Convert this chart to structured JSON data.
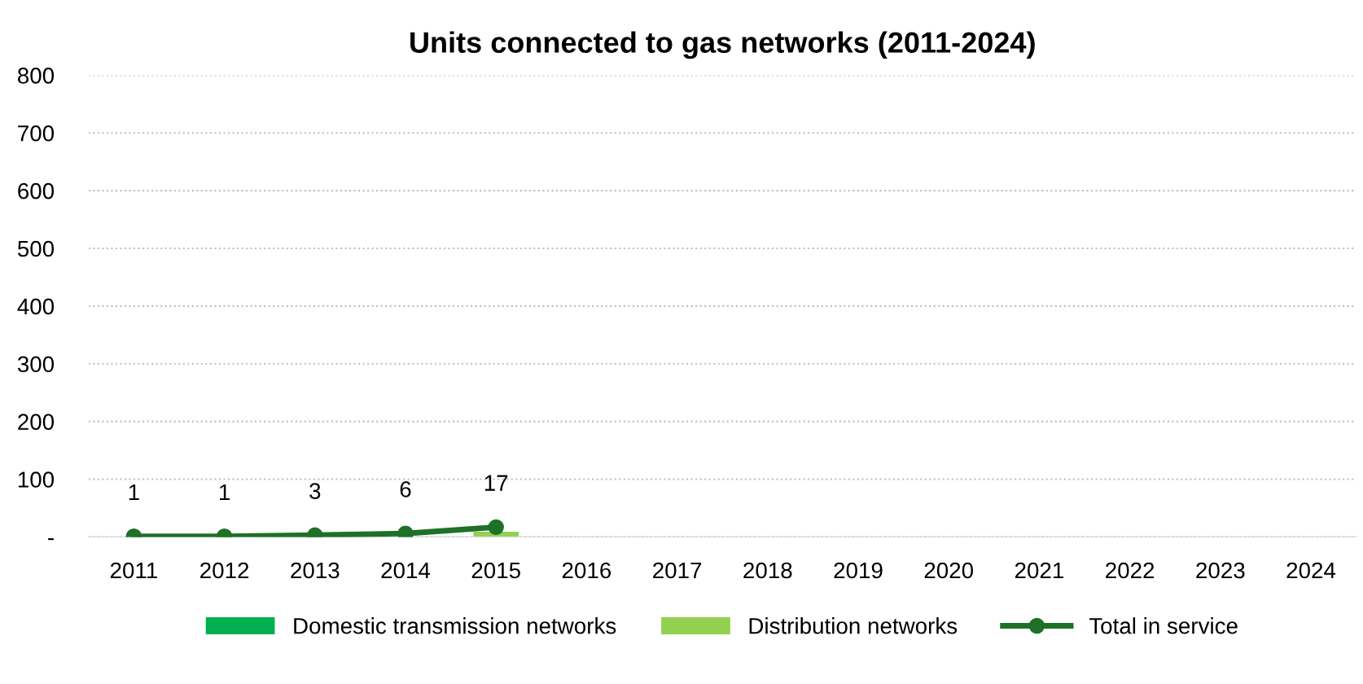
{
  "chart_data": {
    "type": "bar",
    "title": "Units connected to gas networks (2011-2024)",
    "categories": [
      "2011",
      "2012",
      "2013",
      "2014",
      "2015",
      "2016",
      "2017",
      "2018",
      "2019",
      "2020",
      "2021",
      "2022",
      "2023",
      "2024"
    ],
    "series": [
      {
        "name": "Domestic transmission networks",
        "color": "#00b050",
        "values": [
          null,
          null,
          null,
          null,
          null,
          null,
          null,
          null,
          null,
          null,
          null,
          null,
          null,
          null
        ]
      },
      {
        "name": "Distribution networks",
        "color": "#92d050",
        "values": [
          null,
          null,
          null,
          null,
          9,
          null,
          null,
          null,
          null,
          null,
          null,
          null,
          null,
          null
        ]
      },
      {
        "name": "Total in service",
        "type": "line",
        "color": "#1e7127",
        "marker": "circle",
        "values": [
          1,
          1,
          3,
          6,
          17,
          null,
          null,
          null,
          null,
          null,
          null,
          null,
          null,
          null
        ],
        "value_labels": [
          "1",
          "1",
          "3",
          "6",
          "17",
          null,
          null,
          null,
          null,
          null,
          null,
          null,
          null,
          null
        ]
      }
    ],
    "ylim": [
      0,
      800
    ],
    "yticks": [
      {
        "value": 0,
        "label": "-"
      },
      100,
      200,
      300,
      400,
      500,
      600,
      700,
      800
    ],
    "grid": "y",
    "legend": "bottom"
  }
}
